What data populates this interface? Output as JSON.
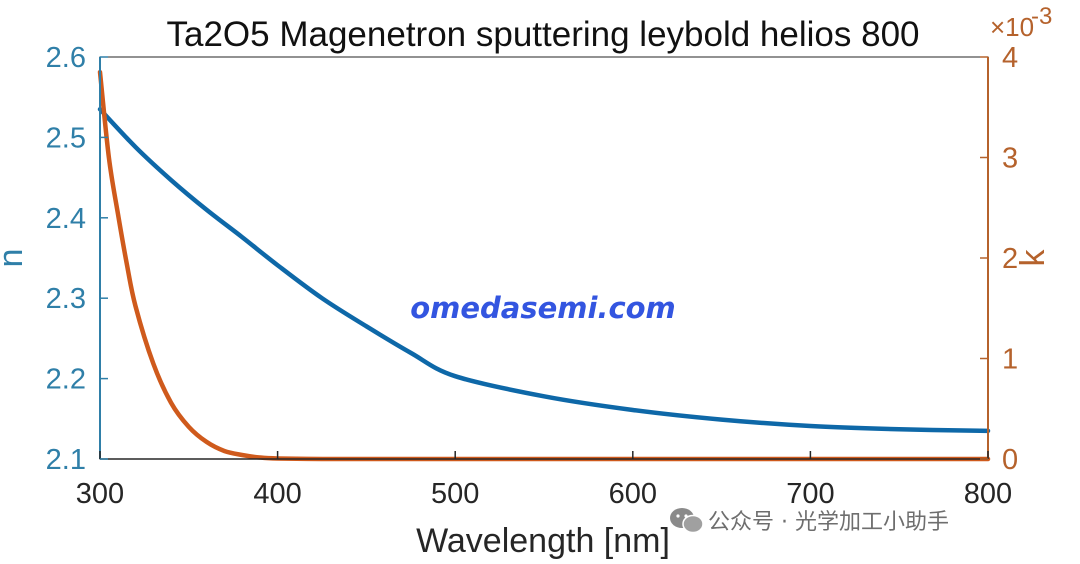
{
  "colors": {
    "left_axis": "#2f7fa8",
    "right_axis": "#b5622c",
    "n_series": "#0e68a8",
    "k_series": "#cf5a1c",
    "watermark": "#3355e0",
    "wechat_text": "#6e6e6e"
  },
  "watermark": {
    "site": "omedasemi.com",
    "wechat": "公众号 · 光学加工小助手"
  },
  "chart_data": {
    "type": "line",
    "title": "Ta2O5 Magenetron sputtering leybold helios 800",
    "xlabel": "Wavelength [nm]",
    "ylabel_left": "n",
    "ylabel_right": "k",
    "right_axis_multiplier": {
      "base": "×10",
      "exponent": "-3"
    },
    "xlim": [
      300,
      800
    ],
    "ylim_left": [
      2.1,
      2.6
    ],
    "ylim_right": [
      0,
      4
    ],
    "x_ticks": [
      "300",
      "400",
      "500",
      "600",
      "700",
      "800"
    ],
    "y_left_ticks": [
      "2.1",
      "2.2",
      "2.3",
      "2.4",
      "2.5",
      "2.6"
    ],
    "y_right_ticks": [
      "0",
      "1",
      "2",
      "3",
      "4"
    ],
    "grid": false,
    "series": [
      {
        "axis": "left",
        "x": [
          300,
          320,
          340,
          360,
          380,
          400,
          425,
          450,
          475,
          500,
          550,
          600,
          650,
          700,
          750,
          800
        ],
        "y": [
          2.535,
          2.488,
          2.447,
          2.41,
          2.376,
          2.341,
          2.3,
          2.265,
          2.232,
          2.203,
          2.178,
          2.161,
          2.149,
          2.141,
          2.137,
          2.135
        ]
      },
      {
        "axis": "right",
        "x": [
          300,
          305,
          310,
          315,
          320,
          330,
          340,
          350,
          360,
          370,
          380,
          390,
          400,
          425,
          450,
          500,
          600,
          700,
          800
        ],
        "y": [
          3.85,
          3.0,
          2.45,
          1.95,
          1.52,
          0.95,
          0.56,
          0.32,
          0.17,
          0.08,
          0.04,
          0.015,
          0.005,
          0.0,
          0.0,
          0.0,
          0.0,
          0.0,
          0.0
        ]
      }
    ]
  }
}
